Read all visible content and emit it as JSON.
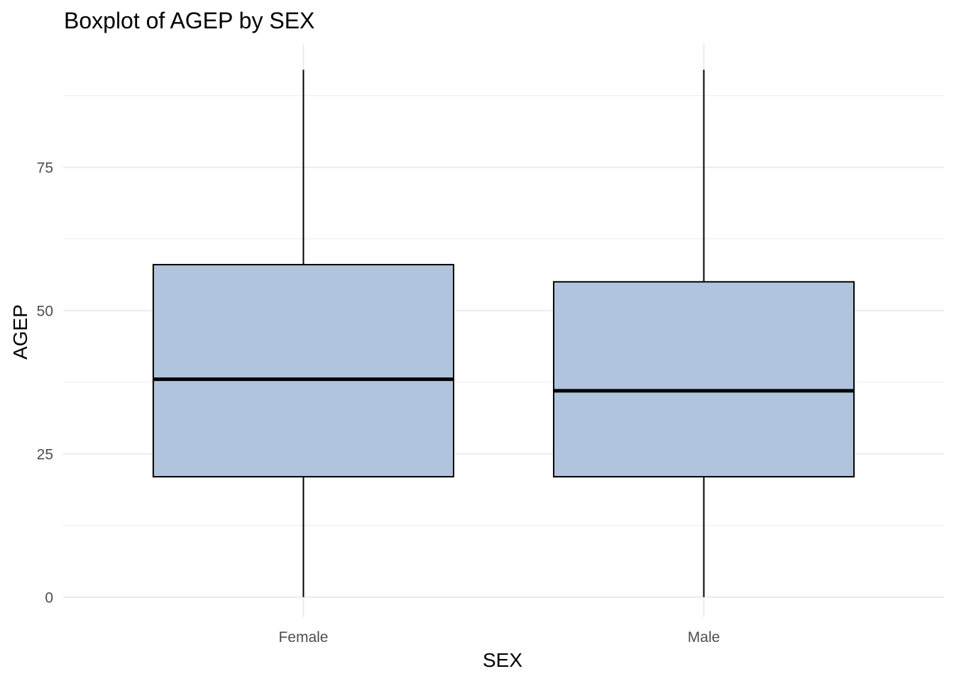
{
  "chart_data": {
    "type": "boxplot",
    "title": "Boxplot of AGEP by SEX",
    "xlabel": "SEX",
    "ylabel": "AGEP",
    "categories": [
      "Female",
      "Male"
    ],
    "boxes": [
      {
        "category": "Female",
        "min": 0,
        "q1": 21,
        "median": 38,
        "q3": 58,
        "max": 92
      },
      {
        "category": "Male",
        "min": 0,
        "q1": 21,
        "median": 36,
        "q3": 55,
        "max": 92
      }
    ],
    "y_ticks": [
      0,
      25,
      50,
      75
    ],
    "y_tick_labels": [
      "0",
      "25",
      "50",
      "75"
    ],
    "ylim": [
      -3.5,
      96.5
    ],
    "grid": true,
    "box_fill": "#b0c4de",
    "box_stroke": "#000000",
    "grid_color": "#ebebeb"
  }
}
